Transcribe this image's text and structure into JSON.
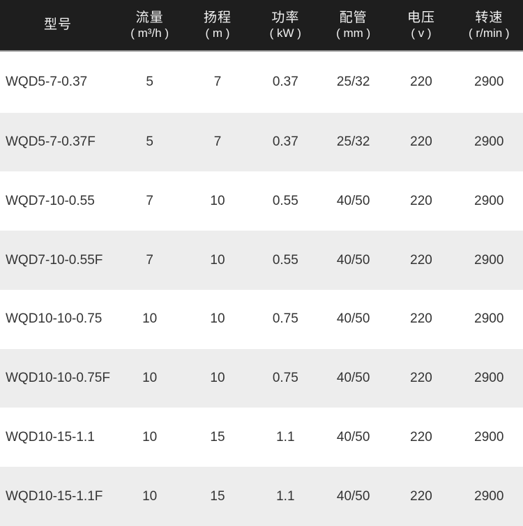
{
  "colors": {
    "header_bg": "#1e1e1e",
    "header_text": "#f2f2f2",
    "header_divider": "#8c8c8c",
    "row_bg": "#ffffff",
    "row_alt_bg": "#ededed",
    "cell_text": "#333333"
  },
  "table": {
    "columns": [
      {
        "key": "model",
        "label": "型号",
        "unit": ""
      },
      {
        "key": "flow",
        "label": "流量",
        "unit": "( m³/h )"
      },
      {
        "key": "head",
        "label": "扬程",
        "unit": "( m )"
      },
      {
        "key": "power",
        "label": "功率",
        "unit": "( kW )"
      },
      {
        "key": "pipe",
        "label": "配管",
        "unit": "( mm )"
      },
      {
        "key": "voltage",
        "label": "电压",
        "unit": "( v )"
      },
      {
        "key": "speed",
        "label": "转速",
        "unit": "( r/min )"
      }
    ],
    "rows": [
      [
        "WQD5-7-0.37",
        "5",
        "7",
        "0.37",
        "25/32",
        "220",
        "2900"
      ],
      [
        "WQD5-7-0.37F",
        "5",
        "7",
        "0.37",
        "25/32",
        "220",
        "2900"
      ],
      [
        "WQD7-10-0.55",
        "7",
        "10",
        "0.55",
        "40/50",
        "220",
        "2900"
      ],
      [
        "WQD7-10-0.55F",
        "7",
        "10",
        "0.55",
        "40/50",
        "220",
        "2900"
      ],
      [
        "WQD10-10-0.75",
        "10",
        "10",
        "0.75",
        "40/50",
        "220",
        "2900"
      ],
      [
        "WQD10-10-0.75F",
        "10",
        "10",
        "0.75",
        "40/50",
        "220",
        "2900"
      ],
      [
        "WQD10-15-1.1",
        "10",
        "15",
        "1.1",
        "40/50",
        "220",
        "2900"
      ],
      [
        "WQD10-15-1.1F",
        "10",
        "15",
        "1.1",
        "40/50",
        "220",
        "2900"
      ]
    ]
  }
}
